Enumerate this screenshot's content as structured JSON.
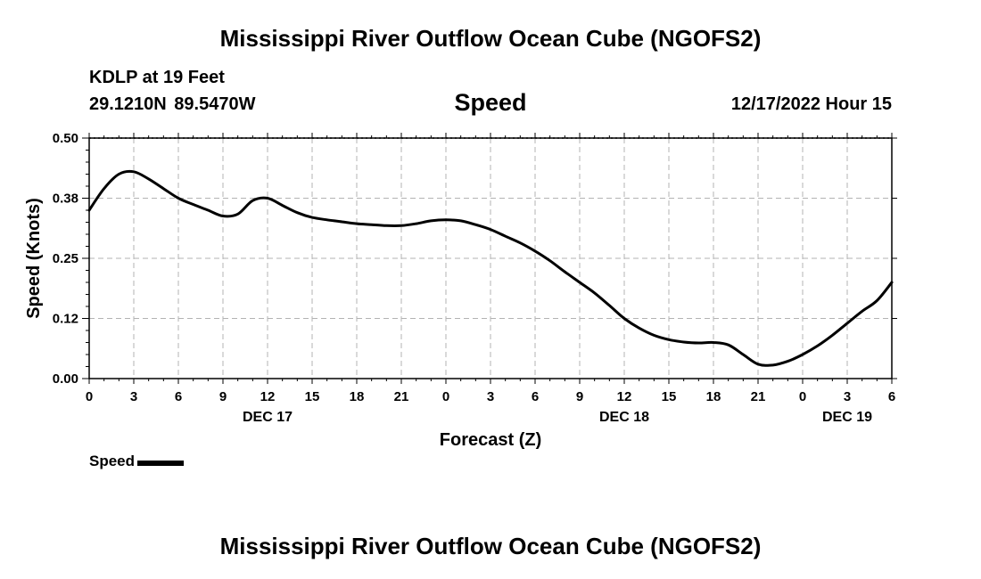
{
  "header": {
    "title": "Mississippi River Outflow Ocean Cube (NGOFS2)",
    "station": "KDLP at 19 Feet",
    "coords": "29.1210N  89.5470W",
    "parameter": "Speed",
    "datetime": "12/17/2022 Hour 15"
  },
  "footer": {
    "title": "Mississippi River Outflow Ocean Cube (NGOFS2)"
  },
  "legend": {
    "label": "Speed"
  },
  "chart_data": {
    "type": "line",
    "ylabel": "Speed (Knots)",
    "xlabel": "Forecast (Z)",
    "ylim": [
      0,
      0.5
    ],
    "xlim": [
      0,
      54
    ],
    "grid": true,
    "y_ticks": [
      0,
      0.125,
      0.25,
      0.375,
      0.5
    ],
    "y_tick_labels": [
      "0.00",
      "0.12",
      "0.25",
      "0.38",
      "0.50"
    ],
    "x_ticks": [
      0,
      3,
      6,
      9,
      12,
      15,
      18,
      21,
      24,
      27,
      30,
      33,
      36,
      39,
      42,
      45,
      48,
      51,
      54
    ],
    "x_tick_labels": [
      "0",
      "3",
      "6",
      "9",
      "12",
      "15",
      "18",
      "21",
      "0",
      "3",
      "6",
      "9",
      "12",
      "15",
      "18",
      "21",
      "0",
      "3",
      "6"
    ],
    "day_labels": [
      {
        "text": "DEC 17",
        "x": 12
      },
      {
        "text": "DEC 18",
        "x": 36
      },
      {
        "text": "DEC 19",
        "x": 51
      }
    ],
    "series": [
      {
        "name": "Speed",
        "color": "#000000",
        "x": [
          0,
          1,
          2,
          3,
          4,
          5,
          6,
          7,
          8,
          9,
          10,
          11,
          12,
          13,
          14,
          15,
          16,
          17,
          18,
          19,
          20,
          21,
          22,
          23,
          24,
          25,
          26,
          27,
          28,
          29,
          30,
          31,
          32,
          33,
          34,
          35,
          36,
          37,
          38,
          39,
          40,
          41,
          42,
          43,
          44,
          45,
          46,
          47,
          48,
          49,
          50,
          51,
          52,
          53,
          54
        ],
        "values": [
          0.35,
          0.395,
          0.425,
          0.43,
          0.415,
          0.395,
          0.375,
          0.362,
          0.35,
          0.338,
          0.342,
          0.37,
          0.375,
          0.36,
          0.345,
          0.335,
          0.33,
          0.326,
          0.322,
          0.32,
          0.318,
          0.318,
          0.322,
          0.328,
          0.33,
          0.328,
          0.32,
          0.31,
          0.296,
          0.282,
          0.265,
          0.245,
          0.222,
          0.2,
          0.178,
          0.152,
          0.125,
          0.105,
          0.09,
          0.081,
          0.076,
          0.074,
          0.075,
          0.07,
          0.05,
          0.03,
          0.028,
          0.036,
          0.05,
          0.068,
          0.09,
          0.115,
          0.14,
          0.162,
          0.2
        ]
      }
    ]
  }
}
